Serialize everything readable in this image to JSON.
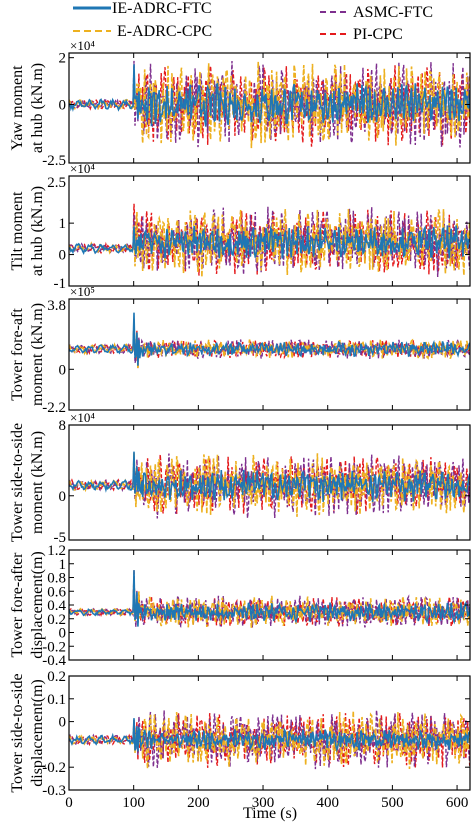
{
  "legend": [
    {
      "name": "IE-ADRC-FTC",
      "color": "#1f77b4",
      "dash": "solid"
    },
    {
      "name": "ASMC-FTC",
      "color": "#7e2f8e",
      "dash": "dashed"
    },
    {
      "name": "E-ADRC-CPC",
      "color": "#edb120",
      "dash": "dashed"
    },
    {
      "name": "PI-CPC",
      "color": "#e41a1c",
      "dash": "dashed"
    }
  ],
  "chart_data": [
    {
      "type": "line",
      "ylabel": [
        "Yaw moment",
        "at hub (kN.m)"
      ],
      "exponent": "×10⁴",
      "ylim": [
        -2.5,
        2.2
      ],
      "yticks": [
        2,
        0
      ],
      "ytick_labels": [
        "2",
        "0"
      ],
      "edge_labels": {
        "bottom": "-2.5"
      },
      "xlim": [
        0,
        620
      ],
      "behavior": {
        "pre_fault_mean": 0,
        "pre_fault_amp": 0.22,
        "transient_peak_max": 2.1,
        "transient_peak_min": -1.7,
        "post_mean": 0,
        "post_amp_blue": 0.8,
        "post_amp_others": 1.6
      }
    },
    {
      "type": "line",
      "ylabel": [
        "Tilt moment",
        "at hub (kN.m)"
      ],
      "exponent": "×10⁴",
      "ylim": [
        -1.0,
        2.5
      ],
      "yticks": [
        0,
        1
      ],
      "ytick_labels": [
        "0",
        "1"
      ],
      "edge_labels": {
        "top": "2.5",
        "bottom": "-1"
      },
      "xlim": [
        0,
        620
      ],
      "behavior": {
        "pre_fault_mean": 0.2,
        "pre_fault_amp": 0.15,
        "transient_peak_max": 1.5,
        "transient_peak_min": -0.6,
        "post_mean": 0.4,
        "post_amp_blue": 0.45,
        "post_amp_others": 0.95
      }
    },
    {
      "type": "line",
      "ylabel": [
        "Tower fore-aft",
        "moment (kN.m)"
      ],
      "exponent": "×10⁵",
      "ylim": [
        -2.2,
        3.8
      ],
      "yticks": [
        0
      ],
      "ytick_labels": [
        "0"
      ],
      "edge_labels": {
        "top": "3.8",
        "bottom": "-2.2"
      },
      "xlim": [
        0,
        620
      ],
      "behavior": {
        "pre_fault_mean": 1.1,
        "pre_fault_amp": 0.25,
        "transient_peak_max": 3.6,
        "transient_peak_min": -2.0,
        "post_mean": 1.1,
        "post_amp_blue": 0.35,
        "post_amp_others": 0.45
      }
    },
    {
      "type": "line",
      "ylabel": [
        "Tower side-to-side",
        "moment (kN.m)"
      ],
      "exponent": "×10⁴",
      "ylim": [
        -5,
        8
      ],
      "yticks": [
        8,
        0
      ],
      "ytick_labels": [
        "8",
        "0"
      ],
      "edge_labels": {
        "bottom": "-5"
      },
      "xlim": [
        0,
        620
      ],
      "behavior": {
        "pre_fault_mean": 1.2,
        "pre_fault_amp": 0.6,
        "transient_peak_max": 5.5,
        "transient_peak_min": -2.5,
        "post_mean": 1.2,
        "post_amp_blue": 1.6,
        "post_amp_others": 3.2
      }
    },
    {
      "type": "line",
      "ylabel": [
        "Tower fore-after",
        "displacement(m)"
      ],
      "ylim": [
        -0.4,
        1.2
      ],
      "yticks": [
        1.2,
        1,
        0.8,
        0.6,
        0.4,
        0.2,
        0,
        -0.2,
        -0.4
      ],
      "ytick_labels": [
        "1.2",
        "1",
        "0.8",
        "0.6",
        "0.4",
        "0.2",
        "0",
        "-0.2",
        "-0.4"
      ],
      "xlim": [
        0,
        620
      ],
      "behavior": {
        "pre_fault_mean": 0.3,
        "pre_fault_amp": 0.05,
        "transient_peak_max": 1.2,
        "transient_peak_min": -0.35,
        "post_mean": 0.3,
        "post_amp_blue": 0.12,
        "post_amp_others": 0.2
      }
    },
    {
      "type": "line",
      "ylabel": [
        "Tower side-to-side",
        "displacement(m)"
      ],
      "ylim": [
        -0.3,
        0.2
      ],
      "yticks": [
        0.2,
        0.1,
        0,
        -0.2,
        -0.3
      ],
      "ytick_labels": [
        "0.2",
        "0.1",
        "0",
        "-0.2",
        "-0.3"
      ],
      "xlim": [
        0,
        620
      ],
      "behavior": {
        "pre_fault_mean": -0.08,
        "pre_fault_amp": 0.02,
        "transient_peak_max": 0.08,
        "transient_peak_min": -0.18,
        "post_mean": -0.08,
        "post_amp_blue": 0.04,
        "post_amp_others": 0.11
      }
    }
  ],
  "xaxis": {
    "label": "Time (s)",
    "ticks": [
      0,
      100,
      200,
      300,
      400,
      500,
      600
    ],
    "tick_labels": [
      "0",
      "100",
      "200",
      "300",
      "400",
      "500",
      "600"
    ],
    "fault_time": 100
  }
}
